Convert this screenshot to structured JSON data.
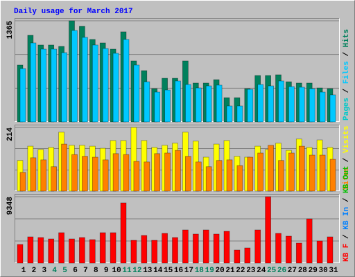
{
  "chart_data": {
    "type": "bar",
    "title": "Daily usage for March 2017",
    "categories": [
      "1",
      "2",
      "3",
      "4",
      "5",
      "6",
      "7",
      "8",
      "9",
      "10",
      "11",
      "12",
      "13",
      "14",
      "15",
      "16",
      "17",
      "18",
      "19",
      "20",
      "21",
      "22",
      "23",
      "24",
      "25",
      "26",
      "27",
      "28",
      "29",
      "30",
      "31"
    ],
    "category_colors": [
      "#000000",
      "#000000",
      "#000000",
      "#00805c",
      "#00805c",
      "#000000",
      "#000000",
      "#000000",
      "#000000",
      "#000000",
      "#00805c",
      "#00805c",
      "#000000",
      "#000000",
      "#000000",
      "#000000",
      "#000000",
      "#00805c",
      "#00805c",
      "#000000",
      "#000000",
      "#000000",
      "#000000",
      "#000000",
      "#00805c",
      "#00805c",
      "#000000",
      "#000000",
      "#000000",
      "#000000",
      "#000000"
    ],
    "panels": [
      {
        "ylim": [
          0,
          1365
        ],
        "yticks": [
          1365
        ],
        "grid_values": [
          455,
          910
        ],
        "series": [
          {
            "name": "Pages",
            "color": "#00c8c8"
          },
          {
            "name": "Files",
            "color": "#00c8ff",
            "values": [
              720,
              1066,
              982,
              982,
              935,
              1234,
              1141,
              1038,
              991,
              926,
              1113,
              767,
              542,
              402,
              430,
              552,
              505,
              458,
              486,
              496,
              215,
              215,
              440,
              505,
              486,
              552,
              477,
              468,
              449,
              402,
              365
            ]
          },
          {
            "name": "Hits",
            "color": "#00805c",
            "values": [
              767,
              1169,
              1038,
              1038,
              1019,
              1365,
              1290,
              1113,
              1066,
              982,
              1216,
              823,
              692,
              449,
              589,
              589,
              823,
              524,
              524,
              570,
              327,
              327,
              449,
              626,
              626,
              636,
              542,
              524,
              524,
              458,
              449
            ]
          }
        ]
      },
      {
        "ylim": [
          0,
          214
        ],
        "yticks": [
          214
        ],
        "grid_values": [
          71,
          143
        ],
        "series": [
          {
            "name": "Sites",
            "color": "#ff8000",
            "values": [
              63,
              112,
              105,
              82,
              158,
              123,
              117,
              114,
              105,
              126,
              123,
              100,
              98,
              126,
              128,
              137,
              117,
              98,
              82,
              103,
              105,
              86,
              114,
              128,
              154,
              103,
              128,
              151,
              121,
              121,
              107
            ]
          },
          {
            "name": "Visits",
            "color": "#ffff00",
            "values": [
              103,
              151,
              140,
              147,
              198,
              154,
              154,
              151,
              144,
              170,
              170,
              214,
              170,
              147,
              154,
              161,
              198,
              168,
              114,
              158,
              170,
              117,
              114,
              151,
              140,
              161,
              137,
              175,
              147,
              172,
              147
            ]
          }
        ]
      },
      {
        "ylim": [
          0,
          9348
        ],
        "yticks": [
          9348
        ],
        "grid_values": [
          3116,
          6232
        ],
        "series": [
          {
            "name": "KB F",
            "color": "#ff0000",
            "values": [
              2630,
              3701,
              3604,
              3409,
              4286,
              3409,
              3604,
              3312,
              4286,
              4286,
              8474,
              3214,
              3896,
              3214,
              4188,
              3604,
              4675,
              4091,
              4675,
              4091,
              4480,
              1851,
              2143,
              4675,
              9348,
              4188,
              3799,
              2825,
              6234,
              3117,
              3701
            ]
          },
          {
            "name": "KB In",
            "color": "#0080ff"
          },
          {
            "name": "KB Out",
            "color": "#00c000"
          }
        ]
      }
    ]
  }
}
